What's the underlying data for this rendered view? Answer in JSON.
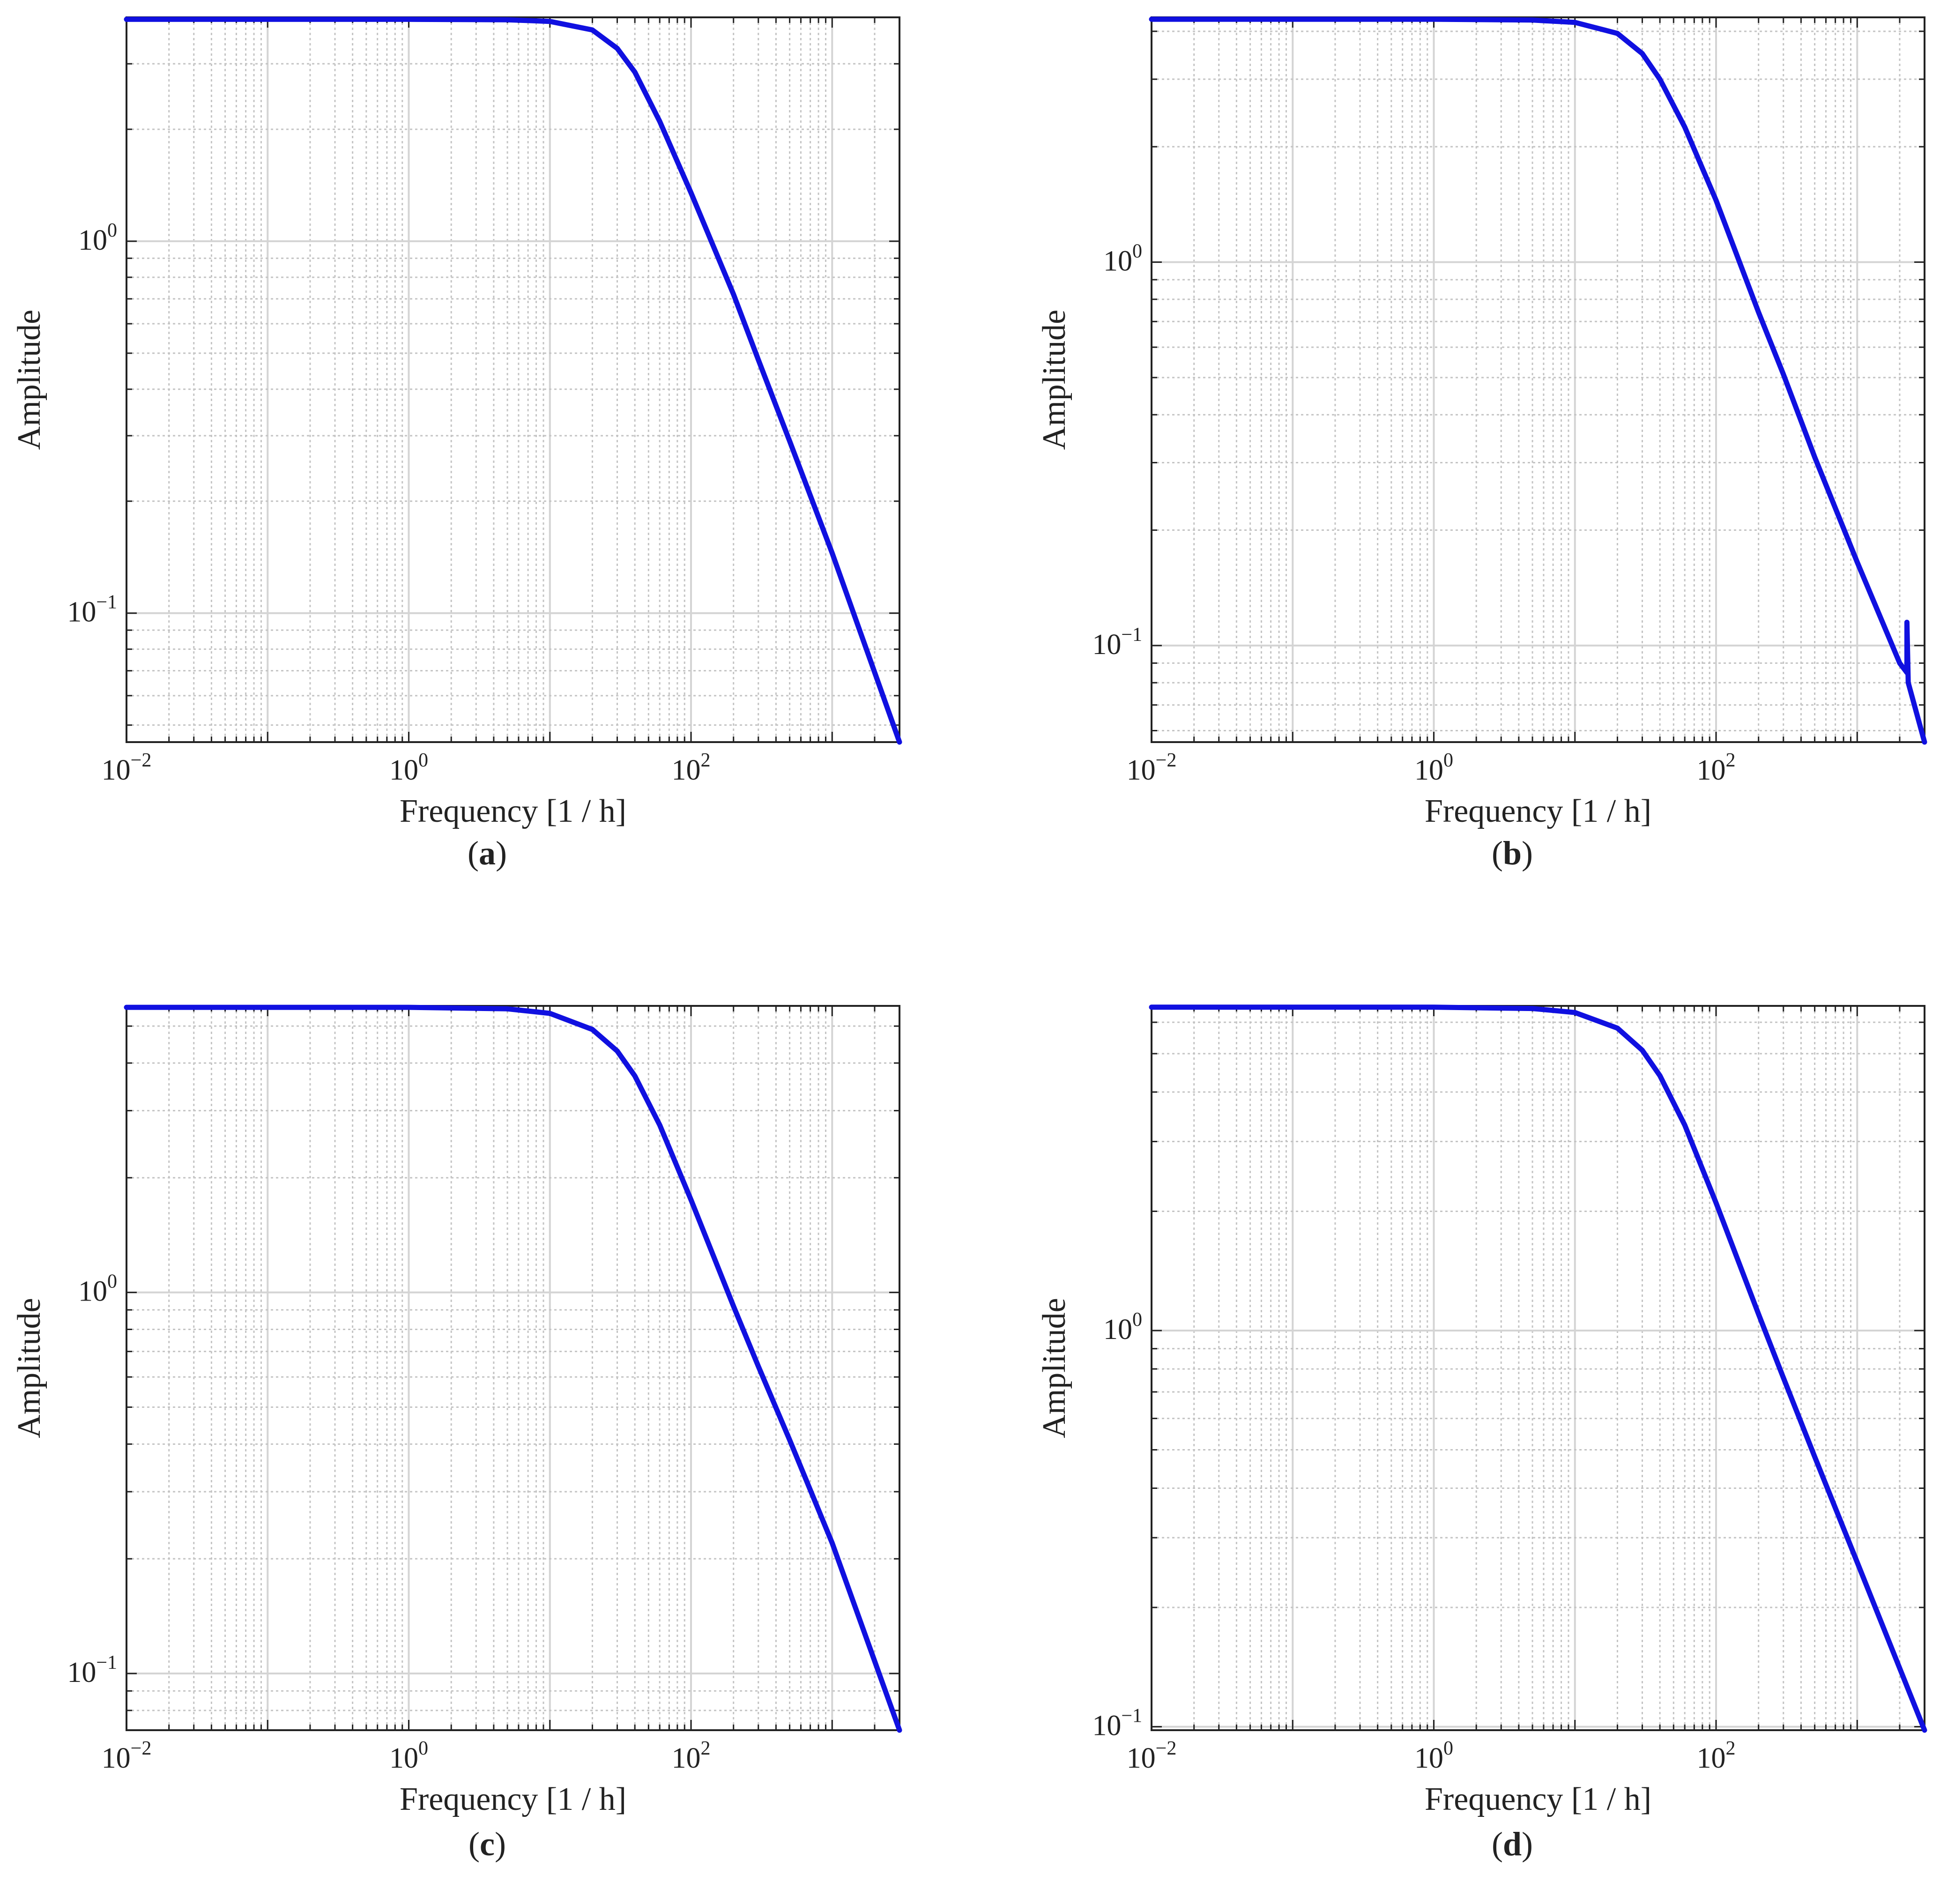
{
  "figure_panels": [
    {
      "id": "a",
      "label": "a"
    },
    {
      "id": "b",
      "label": "b"
    },
    {
      "id": "c",
      "label": "c"
    },
    {
      "id": "d",
      "label": "d"
    }
  ],
  "chart_data": [
    {
      "type": "line",
      "panel": "a",
      "xlabel": "Frequency [1 / h]",
      "ylabel": "Amplitude",
      "xscale": "log",
      "yscale": "log",
      "xlim": [
        0.01,
        3000
      ],
      "ylim": [
        0.045,
        4.0
      ],
      "xticks": [
        {
          "value": 0.01,
          "base": "10",
          "exp": "−2"
        },
        {
          "value": 1,
          "base": "10",
          "exp": "0"
        },
        {
          "value": 100,
          "base": "10",
          "exp": "2"
        }
      ],
      "yticks": [
        {
          "value": 0.1,
          "base": "10",
          "exp": "−1"
        },
        {
          "value": 1,
          "base": "10",
          "exp": "0"
        }
      ],
      "grid": true,
      "series": [
        {
          "name": "amplitude",
          "color": "#1010e0",
          "x": [
            0.01,
            1,
            5,
            10,
            20,
            30,
            40,
            60,
            100,
            200,
            300,
            500,
            1000,
            3000
          ],
          "y": [
            3.95,
            3.95,
            3.94,
            3.9,
            3.7,
            3.3,
            2.85,
            2.1,
            1.35,
            0.72,
            0.48,
            0.29,
            0.145,
            0.045
          ]
        }
      ]
    },
    {
      "type": "line",
      "panel": "b",
      "xlabel": "Frequency [1 / h]",
      "ylabel": "Amplitude",
      "xscale": "log",
      "yscale": "log",
      "xlim": [
        0.01,
        3000
      ],
      "ylim": [
        0.056,
        4.35
      ],
      "xticks": [
        {
          "value": 0.01,
          "base": "10",
          "exp": "−2"
        },
        {
          "value": 1,
          "base": "10",
          "exp": "0"
        },
        {
          "value": 100,
          "base": "10",
          "exp": "2"
        }
      ],
      "yticks": [
        {
          "value": 0.1,
          "base": "10",
          "exp": "−1"
        },
        {
          "value": 1,
          "base": "10",
          "exp": "0"
        }
      ],
      "grid": true,
      "series": [
        {
          "name": "amplitude",
          "color": "#1010e0",
          "x": [
            0.01,
            1,
            5,
            10,
            20,
            30,
            40,
            60,
            100,
            200,
            300,
            500,
            1000,
            2000,
            2250,
            2250,
            2300,
            3000
          ],
          "y": [
            4.3,
            4.3,
            4.28,
            4.22,
            3.95,
            3.5,
            3.0,
            2.25,
            1.45,
            0.74,
            0.51,
            0.31,
            0.165,
            0.09,
            0.085,
            0.115,
            0.08,
            0.056
          ]
        }
      ]
    },
    {
      "type": "line",
      "panel": "c",
      "xlabel": "Frequency [1 / h]",
      "ylabel": "Amplitude",
      "xscale": "log",
      "yscale": "log",
      "xlim": [
        0.01,
        3000
      ],
      "ylim": [
        0.071,
        5.65
      ],
      "xticks": [
        {
          "value": 0.01,
          "base": "10",
          "exp": "−2"
        },
        {
          "value": 1,
          "base": "10",
          "exp": "0"
        },
        {
          "value": 100,
          "base": "10",
          "exp": "2"
        }
      ],
      "yticks": [
        {
          "value": 0.1,
          "base": "10",
          "exp": "−1"
        },
        {
          "value": 1,
          "base": "10",
          "exp": "0"
        }
      ],
      "grid": true,
      "series": [
        {
          "name": "amplitude",
          "color": "#1010e0",
          "x": [
            0.01,
            1,
            5,
            10,
            20,
            30,
            40,
            60,
            100,
            200,
            300,
            500,
            1000,
            3000
          ],
          "y": [
            5.6,
            5.6,
            5.55,
            5.4,
            4.9,
            4.3,
            3.7,
            2.75,
            1.75,
            0.92,
            0.64,
            0.41,
            0.22,
            0.071
          ]
        }
      ]
    },
    {
      "type": "line",
      "panel": "d",
      "xlabel": "Frequency [1 / h]",
      "ylabel": "Amplitude",
      "xscale": "log",
      "yscale": "log",
      "xlim": [
        0.01,
        3000
      ],
      "ylim": [
        0.098,
        6.6
      ],
      "xticks": [
        {
          "value": 0.01,
          "base": "10",
          "exp": "−2"
        },
        {
          "value": 1,
          "base": "10",
          "exp": "0"
        },
        {
          "value": 100,
          "base": "10",
          "exp": "2"
        }
      ],
      "yticks": [
        {
          "value": 0.1,
          "base": "10",
          "exp": "−1"
        },
        {
          "value": 1,
          "base": "10",
          "exp": "0"
        }
      ],
      "grid": true,
      "series": [
        {
          "name": "amplitude",
          "color": "#1010e0",
          "x": [
            0.01,
            1,
            5,
            10,
            20,
            30,
            40,
            60,
            100,
            200,
            300,
            500,
            1000,
            3000
          ],
          "y": [
            6.55,
            6.55,
            6.5,
            6.35,
            5.8,
            5.1,
            4.4,
            3.3,
            2.1,
            1.1,
            0.76,
            0.48,
            0.26,
            0.098
          ]
        }
      ]
    }
  ]
}
